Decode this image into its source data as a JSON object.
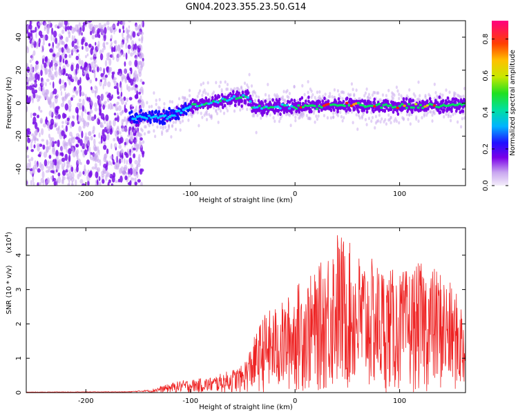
{
  "title": "GN04.2023.355.23.50.G14",
  "chart_data": [
    {
      "type": "heatmap",
      "xlabel": "Height of straight line (km)",
      "ylabel": "Frequency (Hz)",
      "xlim": [
        -257,
        163
      ],
      "ylim": [
        -50,
        50
      ],
      "xticks": [
        -200,
        -100,
        0,
        100
      ],
      "yticks": [
        -40,
        -20,
        0,
        20,
        40
      ],
      "colorbar": {
        "label": "Normalized spectral amplitude",
        "range": [
          0,
          0.9
        ],
        "ticks": [
          0.0,
          0.2,
          0.4,
          0.6,
          0.8
        ],
        "colormap": [
          "#e8e0f4",
          "#7a00e8",
          "#1010ff",
          "#00c8ff",
          "#00e060",
          "#c8e800",
          "#ffa000",
          "#ff2000",
          "#ff0080"
        ]
      },
      "features": {
        "noise_region_km": [
          -257,
          -145
        ],
        "signal_track": [
          {
            "x": -157,
            "y": -9
          },
          {
            "x": -120,
            "y": -8
          },
          {
            "x": -100,
            "y": -2
          },
          {
            "x": -70,
            "y": 2
          },
          {
            "x": -45,
            "y": 4
          },
          {
            "x": -40,
            "y": -3
          },
          {
            "x": 0,
            "y": -2
          },
          {
            "x": 50,
            "y": -1
          },
          {
            "x": 100,
            "y": -2
          },
          {
            "x": 163,
            "y": -1
          }
        ]
      }
    },
    {
      "type": "line",
      "xlabel": "Height of straight line (km)",
      "ylabel": "SNR (10 * v/v)",
      "scale_label": "(x10",
      "scale_exponent": "4",
      "xlim": [
        -257,
        163
      ],
      "ylim": [
        0,
        4.8
      ],
      "xticks": [
        -200,
        -100,
        0,
        100
      ],
      "yticks": [
        0,
        1,
        2,
        3,
        4
      ],
      "color": "#ee2222",
      "envelope": [
        {
          "x": -257,
          "y": 0.02
        },
        {
          "x": -160,
          "y": 0.03
        },
        {
          "x": -140,
          "y": 0.08
        },
        {
          "x": -110,
          "y": 0.35
        },
        {
          "x": -80,
          "y": 0.45
        },
        {
          "x": -50,
          "y": 0.8
        },
        {
          "x": -30,
          "y": 2.3
        },
        {
          "x": -10,
          "y": 2.7
        },
        {
          "x": 5,
          "y": 3.3
        },
        {
          "x": 20,
          "y": 3.5
        },
        {
          "x": 40,
          "y": 4.8
        },
        {
          "x": 60,
          "y": 4.1
        },
        {
          "x": 80,
          "y": 3.8
        },
        {
          "x": 100,
          "y": 3.5
        },
        {
          "x": 120,
          "y": 3.8
        },
        {
          "x": 140,
          "y": 3.6
        },
        {
          "x": 163,
          "y": 2.5
        }
      ]
    }
  ]
}
